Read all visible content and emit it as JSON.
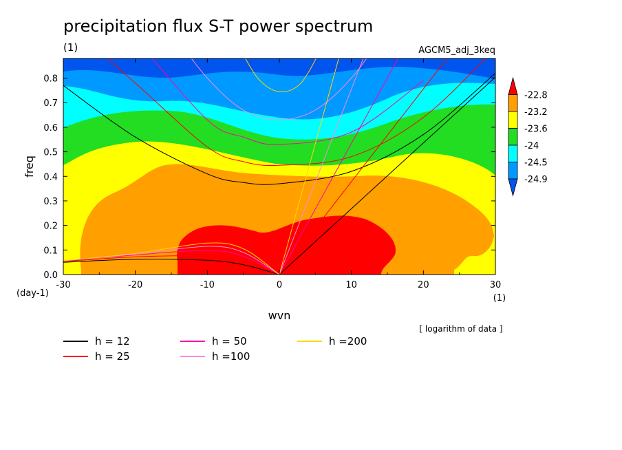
{
  "chart_data": {
    "type": "heatmap",
    "title": "precipitation flux S-T power spectrum",
    "subtitle_left": "(1)",
    "subtitle_right": "AGCM5_adj_3keq",
    "xlabel": "wvn",
    "ylabel": "freq",
    "x_unit": "(1)",
    "y_unit": "(day-1)",
    "note": "[ logarithm of data ]",
    "xlim": [
      -30,
      30
    ],
    "ylim": [
      0,
      0.88
    ],
    "x_ticks": [
      -30,
      -20,
      -10,
      0,
      10,
      20,
      30
    ],
    "x_tick_labels": [
      "-30",
      "-20",
      "-10",
      "0",
      "10",
      "20",
      "30"
    ],
    "y_ticks": [
      0,
      0.1,
      0.2,
      0.3,
      0.4,
      0.5,
      0.6,
      0.7,
      0.8
    ],
    "y_tick_labels": [
      "0.0",
      "0.1",
      "0.2",
      "0.3",
      "0.4",
      "0.5",
      "0.6",
      "0.7",
      "0.8"
    ],
    "colorbar": {
      "levels": [
        "-22.8",
        "-23.2",
        "-23.6",
        "-24",
        "-24.5",
        "-24.9"
      ],
      "colors": [
        "#ff0000",
        "#ff9f00",
        "#ffff00",
        "#22dd22",
        "#00ffff",
        "#0099ff",
        "#0055ee"
      ]
    },
    "fill_colors": {
      "top": "#0055ee",
      "band5": "#0099ff",
      "band4": "#00ffff",
      "band3": "#22dd22",
      "band2": "#ffff00",
      "band1": "#ff9f00",
      "core": "#ff0000"
    },
    "dispersion_curves": [
      {
        "name": "h = 12",
        "color": "#000000"
      },
      {
        "name": "h = 25",
        "color": "#ff0000"
      },
      {
        "name": "h = 50",
        "color": "#ff00aa"
      },
      {
        "name": "h =100",
        "color": "#ff88dd"
      },
      {
        "name": "h =200",
        "color": "#ffd700"
      }
    ],
    "kelvin_slopes": [
      0.0268,
      0.0378,
      0.0534,
      0.0755,
      0.1068
    ],
    "er_curves": [
      {
        "x": [
          -30,
          -20,
          -10,
          -5,
          0
        ],
        "y": [
          0.05,
          0.062,
          0.058,
          0.04,
          0.0
        ]
      },
      {
        "x": [
          -30,
          -20,
          -10,
          -5,
          0
        ],
        "y": [
          0.053,
          0.072,
          0.075,
          0.055,
          0.0
        ]
      },
      {
        "x": [
          -30,
          -20,
          -10,
          -5,
          0
        ],
        "y": [
          0.055,
          0.08,
          0.098,
          0.075,
          0.0
        ]
      },
      {
        "x": [
          -30,
          -20,
          -10,
          -5,
          0
        ],
        "y": [
          0.056,
          0.083,
          0.115,
          0.09,
          0.0
        ]
      },
      {
        "x": [
          -30,
          -20,
          -10,
          -5,
          0
        ],
        "y": [
          0.056,
          0.086,
          0.128,
          0.105,
          0.0
        ]
      }
    ],
    "ig_curves": [
      {
        "x": [
          -30,
          -20,
          -10,
          -5,
          0,
          10,
          20,
          30
        ],
        "y": [
          0.77,
          0.56,
          0.41,
          0.375,
          0.37,
          0.42,
          0.57,
          0.82
        ]
      },
      {
        "x": [
          -30,
          -20,
          -10,
          -5,
          0,
          10,
          20,
          30
        ],
        "y": [
          1.04,
          0.78,
          0.52,
          0.46,
          0.445,
          0.48,
          0.64,
          0.92
        ]
      },
      {
        "x": [
          -20,
          -10,
          -5,
          0,
          10,
          20
        ],
        "y": [
          0.96,
          0.63,
          0.56,
          0.53,
          0.58,
          0.79
        ]
      },
      {
        "x": [
          -15,
          -10,
          -5,
          0,
          5,
          10,
          15
        ],
        "y": [
          0.99,
          0.8,
          0.67,
          0.63,
          0.67,
          0.8,
          1.0
        ]
      },
      {
        "x": [
          -6,
          -3,
          0,
          3,
          6
        ],
        "y": [
          0.95,
          0.8,
          0.745,
          0.78,
          0.93
        ]
      }
    ]
  }
}
